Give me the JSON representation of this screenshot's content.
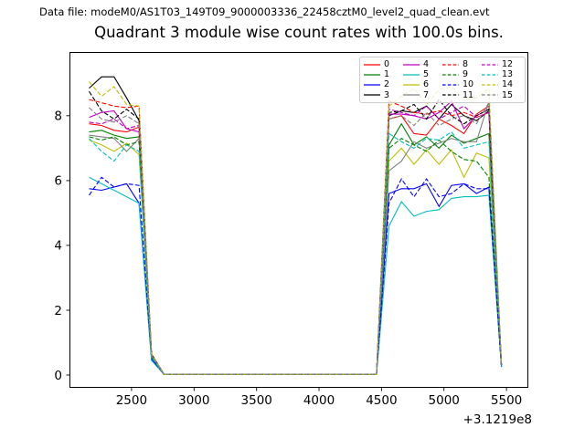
{
  "header": {
    "datafile_text": "Data file: modeM0/AS1T03_149T09_9000003336_22458cztM0_level2_quad_clean.evt"
  },
  "chart_data": {
    "type": "line",
    "title": "Quadrant 3 module wise count rates with 100.0s bins.",
    "xlabel": "",
    "ylabel": "",
    "x_offset_label": "+3.1219e8",
    "xlim": [
      2003,
      5675
    ],
    "ylim": [
      -0.394,
      9.966
    ],
    "xticks": [
      2500,
      3000,
      3500,
      4000,
      4500,
      5000,
      5500
    ],
    "yticks": [
      0,
      2,
      4,
      6,
      8
    ],
    "grid": false,
    "legend_position": "upper right",
    "legend_columns": 4,
    "x": [
      2160,
      2260,
      2360,
      2460,
      2560,
      2660,
      2760,
      2860,
      2960,
      3060,
      3160,
      3260,
      3360,
      3460,
      3560,
      3660,
      3760,
      3860,
      3960,
      4060,
      4160,
      4260,
      4360,
      4460,
      4560,
      4660,
      4760,
      4860,
      4960,
      5060,
      5160,
      5260,
      5360,
      5460
    ],
    "series": [
      {
        "name": "0",
        "color": "#ff0000",
        "dashed": false,
        "values": [
          7.75,
          7.7,
          7.55,
          7.5,
          7.65,
          0.6,
          0.02,
          0.02,
          0.02,
          0.02,
          0.02,
          0.02,
          0.02,
          0.02,
          0.02,
          0.02,
          0.02,
          0.02,
          0.02,
          0.02,
          0.02,
          0.02,
          0.02,
          0.02,
          7.9,
          8.0,
          7.45,
          7.4,
          7.9,
          7.7,
          7.45,
          8.05,
          8.3,
          0.3
        ]
      },
      {
        "name": "1",
        "color": "#008000",
        "dashed": false,
        "values": [
          7.5,
          7.55,
          7.4,
          7.3,
          7.35,
          0.55,
          0.02,
          0.02,
          0.02,
          0.02,
          0.02,
          0.02,
          0.02,
          0.02,
          0.02,
          0.02,
          0.02,
          0.02,
          0.02,
          0.02,
          0.02,
          0.02,
          0.02,
          0.02,
          7.1,
          7.75,
          7.1,
          7.35,
          7.0,
          7.4,
          7.15,
          7.3,
          7.45,
          0.3
        ]
      },
      {
        "name": "2",
        "color": "#0000ff",
        "dashed": false,
        "values": [
          5.75,
          5.7,
          5.8,
          5.9,
          5.3,
          0.5,
          0.02,
          0.02,
          0.02,
          0.02,
          0.02,
          0.02,
          0.02,
          0.02,
          0.02,
          0.02,
          0.02,
          0.02,
          0.02,
          0.02,
          0.02,
          0.02,
          0.02,
          0.02,
          5.6,
          5.75,
          5.75,
          5.9,
          5.2,
          5.85,
          5.9,
          5.6,
          5.8,
          0.25
        ]
      },
      {
        "name": "3",
        "color": "#000000",
        "dashed": false,
        "values": [
          8.85,
          9.2,
          9.2,
          8.55,
          7.85,
          0.65,
          0.02,
          0.02,
          0.02,
          0.02,
          0.02,
          0.02,
          0.02,
          0.02,
          0.02,
          0.02,
          0.02,
          0.02,
          0.02,
          0.02,
          0.02,
          0.02,
          0.02,
          0.02,
          8.0,
          8.15,
          8.1,
          8.3,
          7.9,
          8.35,
          8.0,
          7.85,
          8.15,
          0.3
        ]
      },
      {
        "name": "4",
        "color": "#bf00bf",
        "dashed": false,
        "values": [
          7.95,
          8.1,
          8.15,
          7.6,
          7.5,
          0.6,
          0.02,
          0.02,
          0.02,
          0.02,
          0.02,
          0.02,
          0.02,
          0.02,
          0.02,
          0.02,
          0.02,
          0.02,
          0.02,
          0.02,
          0.02,
          0.02,
          0.02,
          0.02,
          8.05,
          8.05,
          8.0,
          7.9,
          8.1,
          8.45,
          7.6,
          8.0,
          8.2,
          0.3
        ]
      },
      {
        "name": "5",
        "color": "#00bfbf",
        "dashed": false,
        "values": [
          6.1,
          5.9,
          5.7,
          5.5,
          5.3,
          0.45,
          0.02,
          0.02,
          0.02,
          0.02,
          0.02,
          0.02,
          0.02,
          0.02,
          0.02,
          0.02,
          0.02,
          0.02,
          0.02,
          0.02,
          0.02,
          0.02,
          0.02,
          0.02,
          4.6,
          5.35,
          4.9,
          5.05,
          5.1,
          5.45,
          5.5,
          5.5,
          5.55,
          0.25
        ]
      },
      {
        "name": "6",
        "color": "#bfbf00",
        "dashed": false,
        "values": [
          7.25,
          7.1,
          6.9,
          7.15,
          6.8,
          0.6,
          0.02,
          0.02,
          0.02,
          0.02,
          0.02,
          0.02,
          0.02,
          0.02,
          0.02,
          0.02,
          0.02,
          0.02,
          0.02,
          0.02,
          0.02,
          0.02,
          0.02,
          0.02,
          6.6,
          7.0,
          6.5,
          6.95,
          6.5,
          6.95,
          6.1,
          6.85,
          6.7,
          0.3
        ]
      },
      {
        "name": "7",
        "color": "#808080",
        "dashed": false,
        "values": [
          7.4,
          7.35,
          7.3,
          6.9,
          7.3,
          0.6,
          0.02,
          0.02,
          0.02,
          0.02,
          0.02,
          0.02,
          0.02,
          0.02,
          0.02,
          0.02,
          0.02,
          0.02,
          0.02,
          0.02,
          0.02,
          0.02,
          0.02,
          0.02,
          6.3,
          6.6,
          7.2,
          7.0,
          7.15,
          7.3,
          7.2,
          7.2,
          8.45,
          0.3
        ]
      },
      {
        "name": "8",
        "color": "#ff0000",
        "dashed": true,
        "values": [
          8.5,
          8.4,
          8.3,
          8.25,
          8.3,
          0.65,
          0.02,
          0.02,
          0.02,
          0.02,
          0.02,
          0.02,
          0.02,
          0.02,
          0.02,
          0.02,
          0.02,
          0.02,
          0.02,
          0.02,
          0.02,
          0.02,
          0.02,
          0.02,
          8.45,
          8.3,
          8.1,
          8.05,
          8.15,
          8.0,
          8.1,
          7.95,
          8.1,
          0.3
        ]
      },
      {
        "name": "9",
        "color": "#008000",
        "dashed": true,
        "values": [
          7.35,
          7.25,
          7.35,
          7.1,
          7.2,
          0.6,
          0.02,
          0.02,
          0.02,
          0.02,
          0.02,
          0.02,
          0.02,
          0.02,
          0.02,
          0.02,
          0.02,
          0.02,
          0.02,
          0.02,
          0.02,
          0.02,
          0.02,
          0.02,
          7.0,
          7.3,
          7.1,
          6.9,
          7.25,
          6.9,
          6.65,
          6.6,
          6.1,
          0.3
        ]
      },
      {
        "name": "10",
        "color": "#0000ff",
        "dashed": true,
        "values": [
          5.55,
          6.1,
          5.8,
          5.9,
          5.85,
          0.5,
          0.02,
          0.02,
          0.02,
          0.02,
          0.02,
          0.02,
          0.02,
          0.02,
          0.02,
          0.02,
          0.02,
          0.02,
          0.02,
          0.02,
          0.02,
          0.02,
          0.02,
          0.02,
          5.3,
          6.05,
          5.5,
          6.05,
          5.5,
          5.6,
          5.9,
          5.75,
          5.75,
          0.25
        ]
      },
      {
        "name": "11",
        "color": "#000000",
        "dashed": true,
        "values": [
          8.75,
          8.15,
          7.9,
          8.2,
          7.9,
          0.65,
          0.02,
          0.02,
          0.02,
          0.02,
          0.02,
          0.02,
          0.02,
          0.02,
          0.02,
          0.02,
          0.02,
          0.02,
          0.02,
          0.02,
          0.02,
          0.02,
          0.02,
          0.02,
          8.1,
          8.15,
          8.35,
          7.9,
          8.5,
          8.0,
          7.75,
          8.0,
          8.2,
          0.3
        ]
      },
      {
        "name": "12",
        "color": "#bf00bf",
        "dashed": true,
        "values": [
          7.8,
          7.75,
          7.9,
          7.6,
          7.7,
          0.6,
          0.02,
          0.02,
          0.02,
          0.02,
          0.02,
          0.02,
          0.02,
          0.02,
          0.02,
          0.02,
          0.02,
          0.02,
          0.02,
          0.02,
          0.02,
          0.02,
          0.02,
          0.02,
          8.2,
          8.1,
          8.0,
          8.3,
          7.9,
          8.1,
          8.3,
          7.95,
          8.1,
          0.3
        ]
      },
      {
        "name": "13",
        "color": "#00bfbf",
        "dashed": true,
        "values": [
          7.3,
          6.9,
          6.6,
          7.1,
          6.9,
          0.55,
          0.02,
          0.02,
          0.02,
          0.02,
          0.02,
          0.02,
          0.02,
          0.02,
          0.02,
          0.02,
          0.02,
          0.02,
          0.02,
          0.02,
          0.02,
          0.02,
          0.02,
          0.02,
          7.45,
          7.2,
          7.0,
          7.3,
          7.25,
          7.5,
          7.0,
          7.1,
          7.2,
          0.3
        ]
      },
      {
        "name": "14",
        "color": "#bfbf00",
        "dashed": true,
        "values": [
          9.05,
          8.6,
          8.9,
          8.35,
          8.3,
          0.65,
          0.02,
          0.02,
          0.02,
          0.02,
          0.02,
          0.02,
          0.02,
          0.02,
          0.02,
          0.02,
          0.02,
          0.02,
          0.02,
          0.02,
          0.02,
          0.02,
          0.02,
          0.02,
          8.3,
          8.6,
          8.85,
          8.35,
          8.8,
          8.9,
          8.5,
          8.55,
          8.85,
          0.35
        ]
      },
      {
        "name": "15",
        "color": "#808080",
        "dashed": true,
        "values": [
          8.25,
          7.9,
          7.8,
          8.0,
          7.75,
          0.6,
          0.02,
          0.02,
          0.02,
          0.02,
          0.02,
          0.02,
          0.02,
          0.02,
          0.02,
          0.02,
          0.02,
          0.02,
          0.02,
          0.02,
          0.02,
          0.02,
          0.02,
          0.02,
          7.9,
          8.0,
          7.7,
          8.1,
          7.7,
          7.9,
          8.0,
          7.75,
          8.4,
          0.3
        ]
      }
    ]
  }
}
